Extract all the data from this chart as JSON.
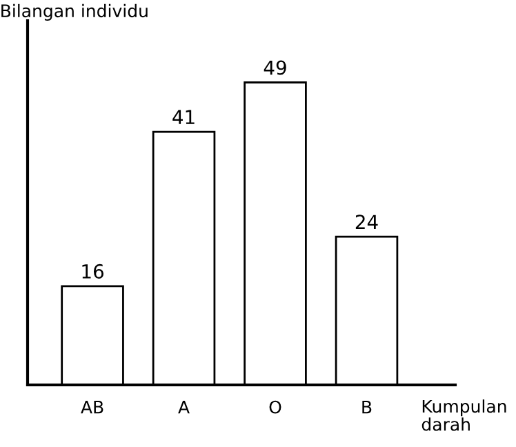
{
  "chart_data": {
    "type": "bar",
    "ylabel": "Bilangan individu",
    "xlabel": "Kumpulan\ndarah",
    "categories": [
      "AB",
      "A",
      "O",
      "B"
    ],
    "values": [
      16,
      41,
      49,
      24
    ],
    "color": "#ffffff",
    "data_labels": true,
    "ylim": [
      0,
      59
    ],
    "tick_labels": "x",
    "grid": false,
    "legend": false
  }
}
